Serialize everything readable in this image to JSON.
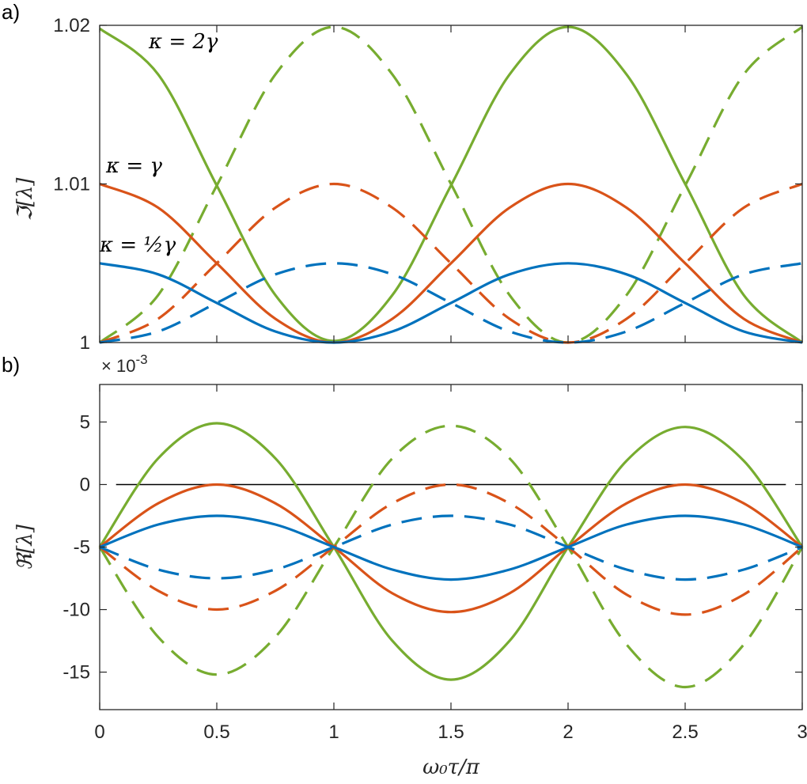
{
  "panels": {
    "a_label": "a)",
    "b_label": "b)"
  },
  "colors": {
    "blue": "#0072BD",
    "orange": "#D95319",
    "green": "#77AC30",
    "zero_line": "#000000",
    "axes": "#262626"
  },
  "chart_data": [
    {
      "type": "line",
      "panel": "a",
      "ylabel": "ℑ[λ]",
      "xlabel": "",
      "xlim": [
        0,
        3
      ],
      "ylim": [
        1,
        1.02
      ],
      "xticks": [
        0,
        0.5,
        1,
        1.5,
        2,
        2.5,
        3
      ],
      "yticks": [
        1,
        1.01,
        1.02
      ],
      "ytick_labels": [
        "1",
        "1.01",
        "1.02"
      ],
      "grid": false,
      "annotations": [
        "κ = 2γ",
        "κ = γ",
        "κ = ½γ"
      ],
      "series": [
        {
          "color": "green",
          "style": "solid",
          "x": [
            0,
            0.25,
            0.5,
            0.75,
            1,
            1.25,
            1.5,
            1.75,
            2,
            2.25,
            2.5,
            2.75,
            3
          ],
          "y": [
            1.0198,
            1.0169,
            1.0099,
            1.003,
            1.0001,
            1.003,
            1.0099,
            1.0169,
            1.0199,
            1.0169,
            1.01,
            1.003,
            1.0
          ]
        },
        {
          "color": "green",
          "style": "dashed",
          "x": [
            0,
            0.25,
            0.5,
            0.75,
            1,
            1.25,
            1.5,
            1.75,
            2,
            2.25,
            2.5,
            2.75,
            3
          ],
          "y": [
            1.0,
            1.003,
            1.0099,
            1.0169,
            1.0199,
            1.0169,
            1.01,
            1.003,
            1.0,
            1.003,
            1.0099,
            1.0169,
            1.0199
          ]
        },
        {
          "color": "orange",
          "style": "solid",
          "x": [
            0,
            0.25,
            0.5,
            0.75,
            1,
            1.25,
            1.5,
            1.75,
            2,
            2.25,
            2.5,
            2.75,
            3
          ],
          "y": [
            1.01,
            1.0085,
            1.005,
            1.0015,
            1.0,
            1.0015,
            1.005,
            1.0085,
            1.01,
            1.0085,
            1.005,
            1.0015,
            1.0
          ]
        },
        {
          "color": "orange",
          "style": "dashed",
          "x": [
            0,
            0.25,
            0.5,
            0.75,
            1,
            1.25,
            1.5,
            1.75,
            2,
            2.25,
            2.5,
            2.75,
            3
          ],
          "y": [
            1.0,
            1.0015,
            1.005,
            1.0085,
            1.01,
            1.0085,
            1.005,
            1.0015,
            1.0,
            1.0015,
            1.005,
            1.0085,
            1.01
          ]
        },
        {
          "color": "blue",
          "style": "solid",
          "x": [
            0,
            0.25,
            0.5,
            0.75,
            1,
            1.25,
            1.5,
            1.75,
            2,
            2.25,
            2.5,
            2.75,
            3
          ],
          "y": [
            1.005,
            1.0043,
            1.0025,
            1.0007,
            1.0,
            1.0007,
            1.0025,
            1.0043,
            1.005,
            1.0043,
            1.0025,
            1.0007,
            1.0
          ]
        },
        {
          "color": "blue",
          "style": "dashed",
          "x": [
            0,
            0.25,
            0.5,
            0.75,
            1,
            1.25,
            1.5,
            1.75,
            2,
            2.25,
            2.5,
            2.75,
            3
          ],
          "y": [
            1.0,
            1.0007,
            1.0025,
            1.0043,
            1.005,
            1.0043,
            1.0025,
            1.0007,
            1.0,
            1.0007,
            1.0025,
            1.0043,
            1.005
          ]
        }
      ]
    },
    {
      "type": "line",
      "panel": "b",
      "ylabel": "ℜ[λ]",
      "xlabel": "ω₀τ/π",
      "xlim": [
        0,
        3
      ],
      "ylim": [
        -18,
        8
      ],
      "scale_label": "× 10",
      "scale_exponent": "-3",
      "xticks": [
        0,
        0.5,
        1,
        1.5,
        2,
        2.5,
        3
      ],
      "xtick_labels": [
        "0",
        "0.5",
        "1",
        "1.5",
        "2",
        "2.5",
        "3"
      ],
      "yticks": [
        5,
        0,
        -5,
        -10,
        -15
      ],
      "ytick_labels": [
        "5",
        "0",
        "-5",
        "-10",
        "-15"
      ],
      "grid": false,
      "series": [
        {
          "color": "black",
          "style": "solid",
          "x": [
            0.07,
            2.93
          ],
          "y": [
            0,
            0
          ]
        },
        {
          "color": "green",
          "style": "solid",
          "x": [
            0,
            0.25,
            0.5,
            0.75,
            1,
            1.25,
            1.5,
            1.75,
            2,
            2.25,
            2.5,
            2.75,
            3
          ],
          "y": [
            -5,
            2.1,
            4.9,
            2.1,
            -5,
            -12.5,
            -15.6,
            -12.5,
            -5,
            1.9,
            4.6,
            1.9,
            -5
          ]
        },
        {
          "color": "green",
          "style": "dashed",
          "x": [
            0,
            0.25,
            0.5,
            0.75,
            1,
            1.25,
            1.5,
            1.75,
            2,
            2.25,
            2.5,
            2.75,
            3
          ],
          "y": [
            -5,
            -12.2,
            -15.2,
            -12.2,
            -5,
            2.1,
            4.7,
            2.1,
            -5,
            -12.8,
            -16.2,
            -12.8,
            -5
          ]
        },
        {
          "color": "orange",
          "style": "solid",
          "x": [
            0,
            0.25,
            0.5,
            0.75,
            1,
            1.25,
            1.5,
            1.75,
            2,
            2.25,
            2.5,
            2.75,
            3
          ],
          "y": [
            -5,
            -1.5,
            0,
            -1.5,
            -5,
            -8.7,
            -10.2,
            -8.7,
            -5,
            -1.5,
            0,
            -1.5,
            -5
          ]
        },
        {
          "color": "orange",
          "style": "dashed",
          "x": [
            0,
            0.25,
            0.5,
            0.75,
            1,
            1.25,
            1.5,
            1.75,
            2,
            2.25,
            2.5,
            2.75,
            3
          ],
          "y": [
            -5,
            -8.5,
            -10,
            -8.5,
            -5,
            -1.5,
            0,
            -1.5,
            -5,
            -8.8,
            -10.4,
            -8.8,
            -5
          ]
        },
        {
          "color": "blue",
          "style": "solid",
          "x": [
            0,
            0.25,
            0.5,
            0.75,
            1,
            1.25,
            1.5,
            1.75,
            2,
            2.25,
            2.5,
            2.75,
            3
          ],
          "y": [
            -5,
            -3.2,
            -2.5,
            -3.2,
            -5,
            -6.8,
            -7.6,
            -6.8,
            -5,
            -3.2,
            -2.5,
            -3.2,
            -5
          ]
        },
        {
          "color": "blue",
          "style": "dashed",
          "x": [
            0,
            0.25,
            0.5,
            0.75,
            1,
            1.25,
            1.5,
            1.75,
            2,
            2.25,
            2.5,
            2.75,
            3
          ],
          "y": [
            -5,
            -6.8,
            -7.5,
            -6.8,
            -5,
            -3.2,
            -2.5,
            -3.2,
            -5,
            -6.8,
            -7.6,
            -6.8,
            -5
          ]
        }
      ]
    }
  ]
}
